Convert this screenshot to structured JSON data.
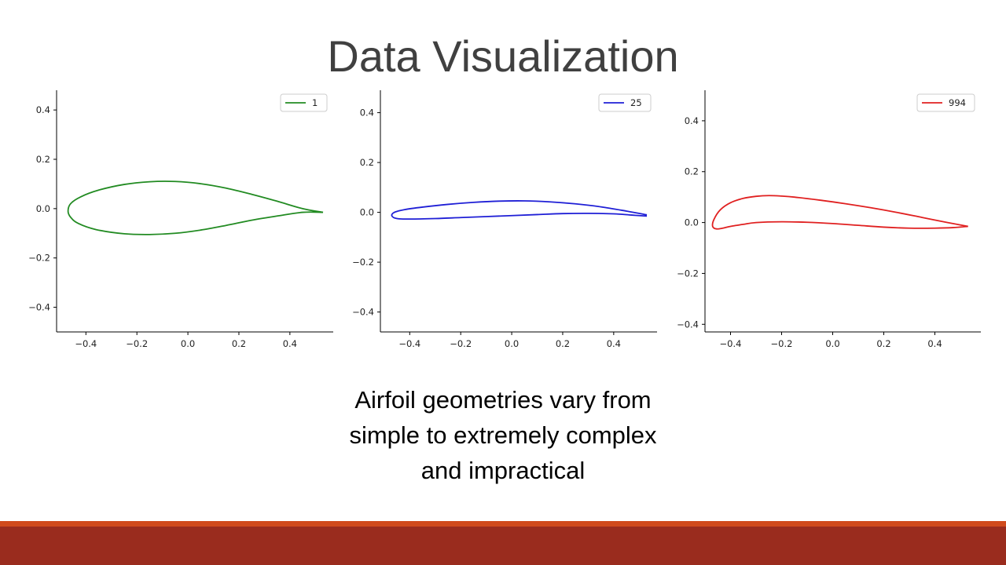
{
  "slide": {
    "title": "Data Visualization",
    "caption_lines": [
      "Airfoil geometries vary from",
      "simple to extremely complex",
      "and impractical"
    ]
  },
  "colors": {
    "title_text": "#404040",
    "footer_accent": "#d04a1c",
    "footer_bar": "#9a2c1e"
  },
  "chart_data": [
    {
      "type": "line",
      "series": [
        {
          "name": "1",
          "color": "#228B22",
          "x": [
            0.53,
            0.45,
            0.35,
            0.25,
            0.15,
            0.05,
            -0.05,
            -0.15,
            -0.25,
            -0.35,
            -0.42,
            -0.46,
            -0.47,
            -0.46,
            -0.43,
            -0.36,
            -0.25,
            -0.15,
            -0.05,
            0.05,
            0.15,
            0.25,
            0.35,
            0.45,
            0.53
          ],
          "y": [
            -0.015,
            0.0,
            0.03,
            0.058,
            0.083,
            0.101,
            0.11,
            0.109,
            0.098,
            0.075,
            0.048,
            0.02,
            -0.01,
            -0.035,
            -0.06,
            -0.085,
            -0.102,
            -0.105,
            -0.1,
            -0.087,
            -0.068,
            -0.047,
            -0.03,
            -0.015,
            -0.015
          ]
        }
      ],
      "xlim": [
        -0.515,
        0.57
      ],
      "ylim": [
        -0.5,
        0.48
      ],
      "xticks": [
        "−0.4",
        "−0.2",
        "0.0",
        "0.2",
        "0.4"
      ],
      "yticks": [
        "0.4",
        "0.2",
        "0.0",
        "−0.2",
        "−0.4"
      ],
      "legend": "top-right",
      "grid": false
    },
    {
      "type": "line",
      "series": [
        {
          "name": "25",
          "color": "#1f1fd6",
          "x": [
            0.53,
            0.45,
            0.35,
            0.25,
            0.15,
            0.05,
            -0.05,
            -0.15,
            -0.25,
            -0.35,
            -0.42,
            -0.46,
            -0.47,
            -0.45,
            -0.4,
            -0.3,
            -0.2,
            -0.1,
            0.0,
            0.1,
            0.2,
            0.3,
            0.4,
            0.47,
            0.53
          ],
          "y": [
            -0.01,
            0.005,
            0.022,
            0.034,
            0.042,
            0.046,
            0.045,
            0.04,
            0.032,
            0.021,
            0.011,
            0.0,
            -0.014,
            -0.025,
            -0.027,
            -0.025,
            -0.021,
            -0.017,
            -0.013,
            -0.009,
            -0.005,
            -0.004,
            -0.006,
            -0.011,
            -0.015
          ]
        }
      ],
      "xlim": [
        -0.515,
        0.57
      ],
      "ylim": [
        -0.48,
        0.49
      ],
      "xticks": [
        "−0.4",
        "−0.2",
        "0.0",
        "0.2",
        "0.4"
      ],
      "yticks": [
        "0.4",
        "0.2",
        "0.0",
        "−0.2",
        "−0.4"
      ],
      "legend": "top-right",
      "grid": false
    },
    {
      "type": "line",
      "series": [
        {
          "name": "994",
          "color": "#e02020",
          "x": [
            0.53,
            0.45,
            0.35,
            0.25,
            0.15,
            0.05,
            -0.05,
            -0.15,
            -0.2,
            -0.25,
            -0.3,
            -0.35,
            -0.4,
            -0.44,
            -0.465,
            -0.47,
            -0.455,
            -0.43,
            -0.4,
            -0.35,
            -0.3,
            -0.2,
            -0.1,
            0.0,
            0.1,
            0.2,
            0.3,
            0.4,
            0.47,
            0.53
          ],
          "y": [
            -0.015,
            0.0,
            0.02,
            0.04,
            0.058,
            0.074,
            0.088,
            0.1,
            0.104,
            0.106,
            0.103,
            0.095,
            0.078,
            0.05,
            0.012,
            -0.015,
            -0.025,
            -0.022,
            -0.015,
            -0.007,
            0.0,
            0.003,
            0.001,
            -0.004,
            -0.011,
            -0.018,
            -0.022,
            -0.022,
            -0.02,
            -0.015
          ]
        }
      ],
      "xlim": [
        -0.5,
        0.58
      ],
      "ylim": [
        -0.43,
        0.52
      ],
      "xticks": [
        "−0.4",
        "−0.2",
        "0.0",
        "0.2",
        "0.4"
      ],
      "yticks": [
        "0.4",
        "0.2",
        "0.0",
        "−0.2",
        "−0.4"
      ],
      "legend": "top-right",
      "grid": false
    }
  ]
}
